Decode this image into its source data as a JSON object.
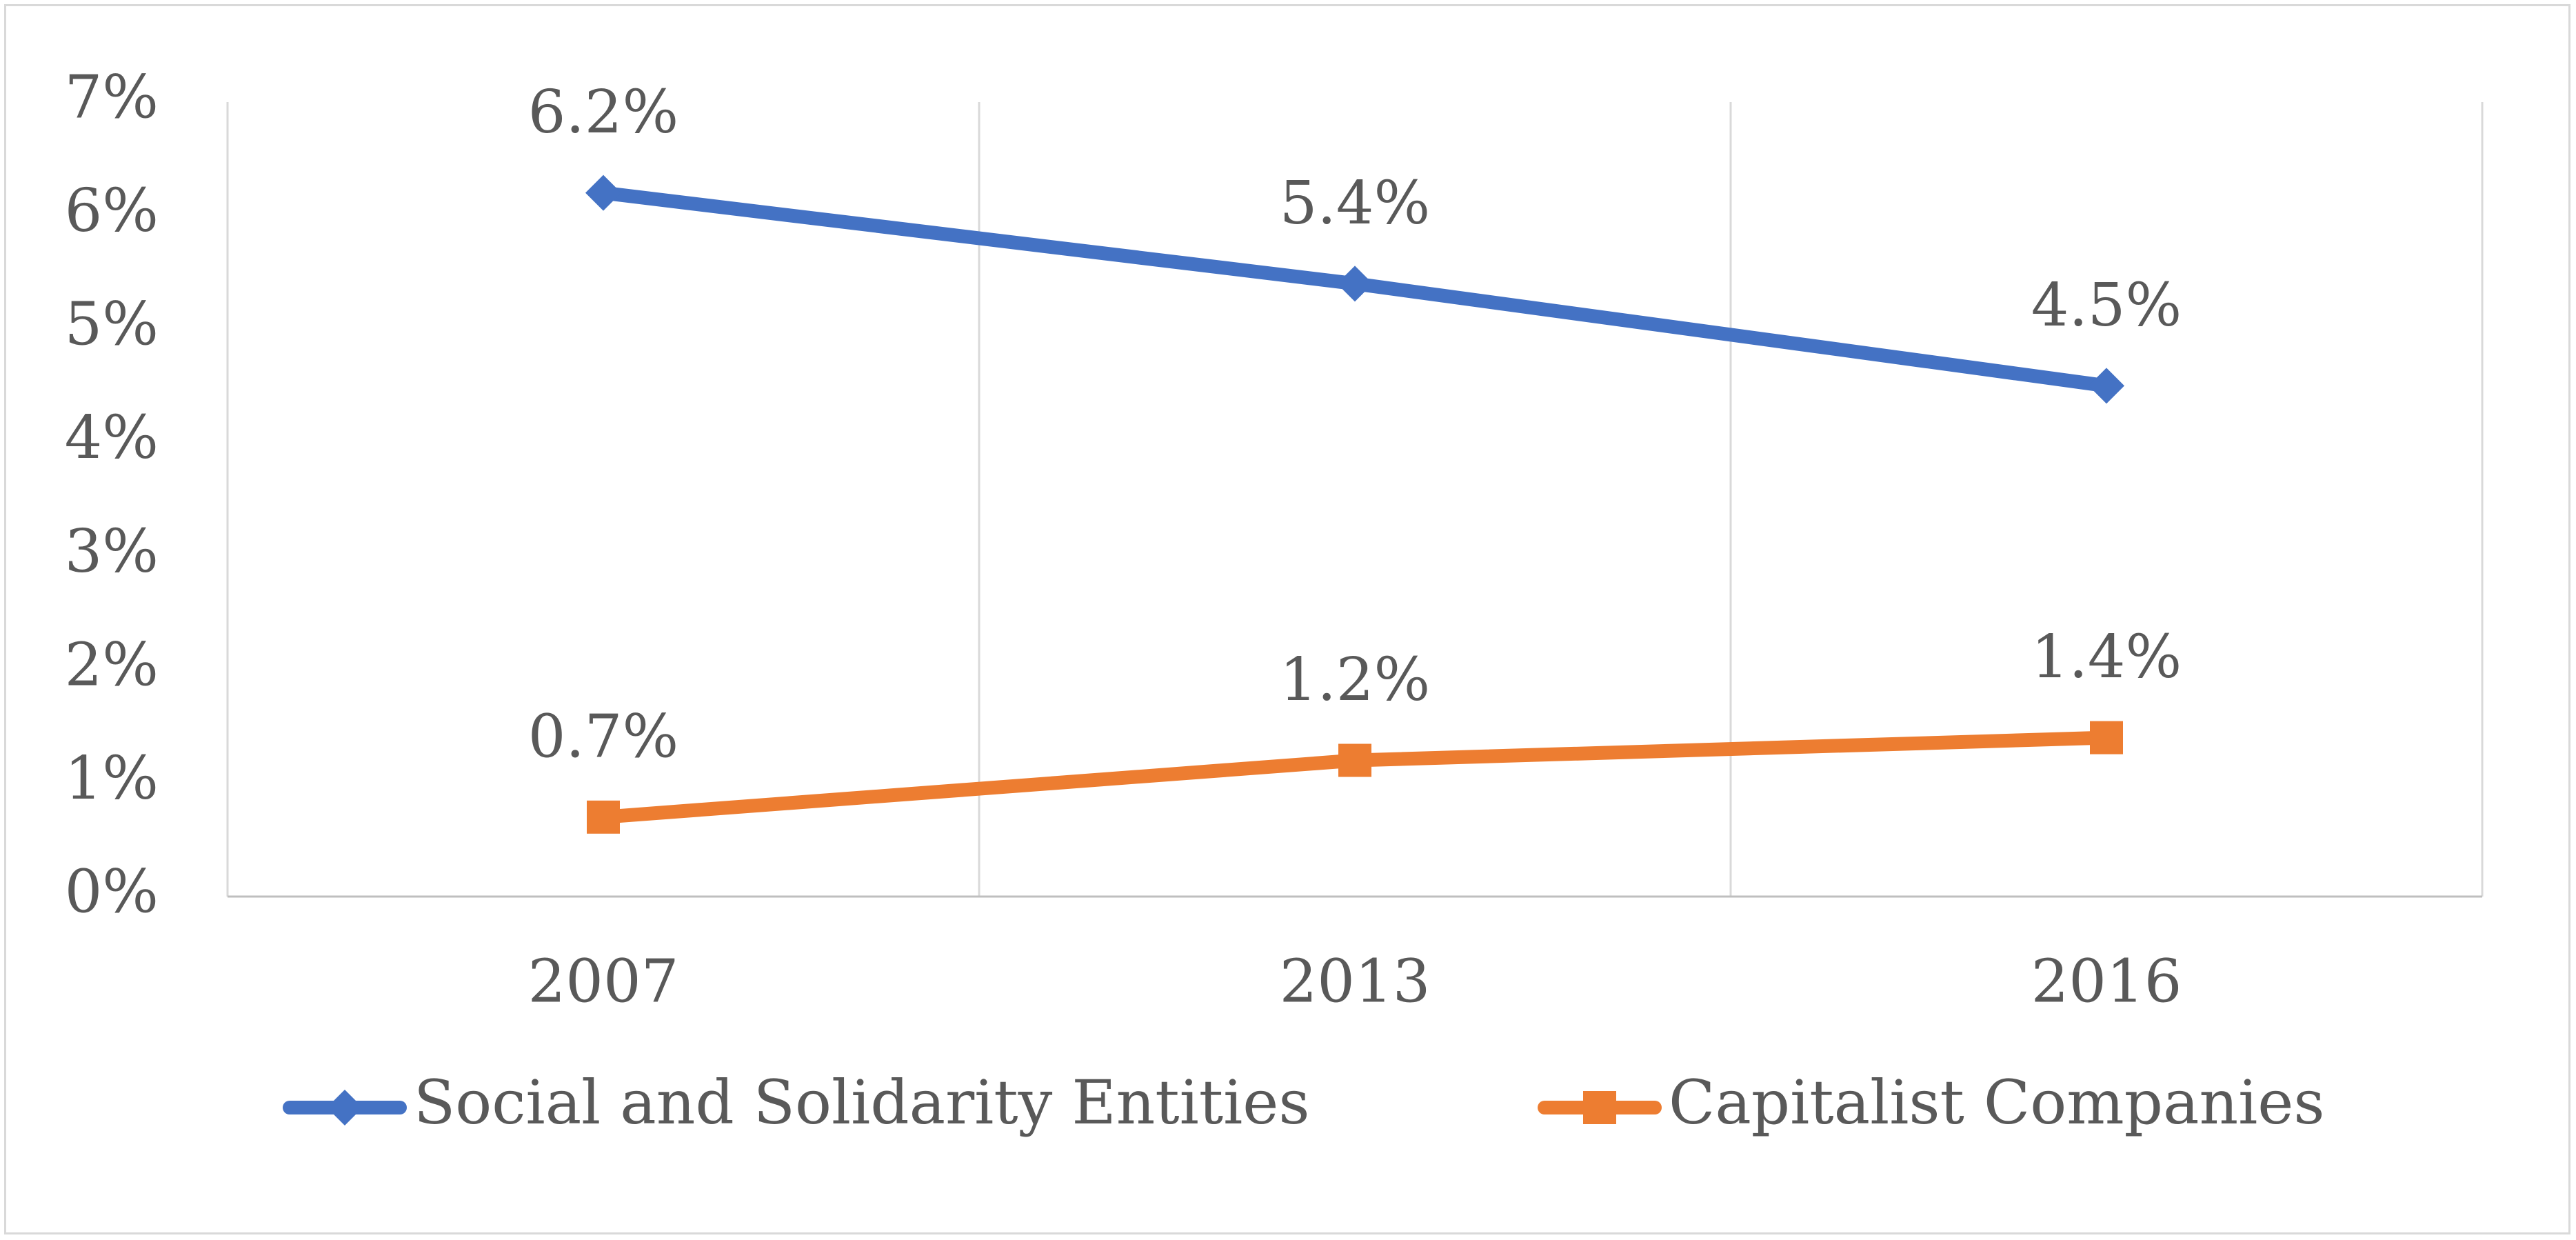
{
  "chart_data": {
    "type": "line",
    "title": "",
    "xlabel": "",
    "ylabel": "",
    "categories": [
      "2007",
      "2013",
      "2016"
    ],
    "ylim": [
      0,
      7
    ],
    "yticks": [
      0,
      1,
      2,
      3,
      4,
      5,
      6,
      7
    ],
    "ytick_labels": [
      "0%",
      "1%",
      "2%",
      "3%",
      "4%",
      "5%",
      "6%",
      "7%"
    ],
    "grid": "vertical",
    "legend_position": "bottom",
    "series": [
      {
        "name": "Social and Solidarity Entities",
        "color": "#4472C4",
        "marker": "diamond",
        "values": [
          6.2,
          5.4,
          4.5
        ],
        "labels": [
          "6.2%",
          "5.4%",
          "4.5%"
        ]
      },
      {
        "name": "Capitalist Companies",
        "color": "#ED7D31",
        "marker": "square",
        "values": [
          0.7,
          1.2,
          1.4
        ],
        "labels": [
          "0.7%",
          "1.2%",
          "1.4%"
        ]
      }
    ]
  }
}
